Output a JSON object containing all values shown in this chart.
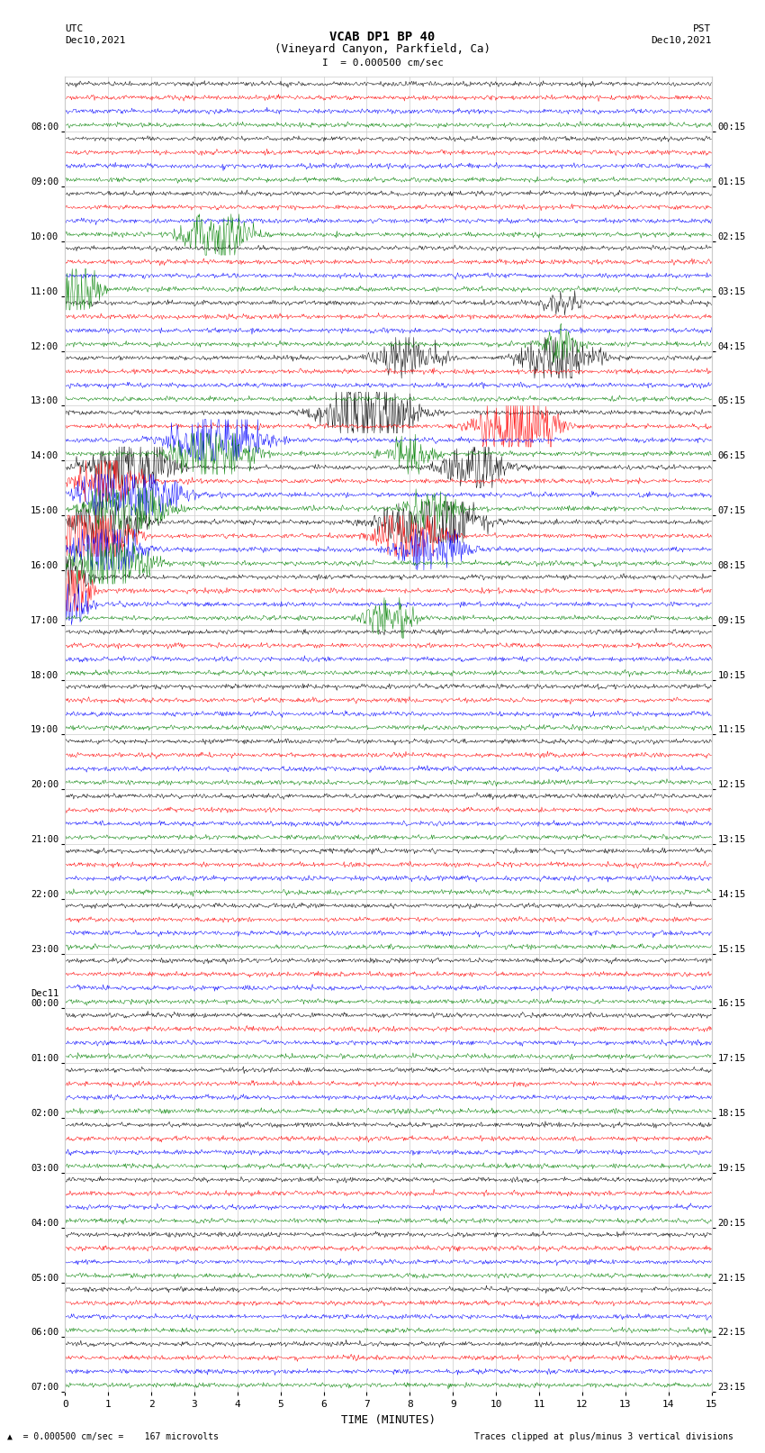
{
  "title_line1": "VCAB DP1 BP 40",
  "title_line2": "(Vineyard Canyon, Parkfield, Ca)",
  "scale_label": "I  = 0.000500 cm/sec",
  "left_label_top": "UTC",
  "left_label_date": "Dec10,2021",
  "right_label_top": "PST",
  "right_label_date": "Dec10,2021",
  "xlabel": "TIME (MINUTES)",
  "bottom_left_note": "= 0.000500 cm/sec =    167 microvolts",
  "bottom_right_note": "Traces clipped at plus/minus 3 vertical divisions",
  "num_rows": 24,
  "colors": [
    "black",
    "red",
    "blue",
    "green"
  ],
  "bg_color": "#ffffff",
  "grid_color": "#cccccc",
  "fig_width": 8.5,
  "fig_height": 16.13,
  "dpi": 100,
  "left_times_utc": [
    "08:00",
    "09:00",
    "10:00",
    "11:00",
    "12:00",
    "13:00",
    "14:00",
    "15:00",
    "16:00",
    "17:00",
    "18:00",
    "19:00",
    "20:00",
    "21:00",
    "22:00",
    "23:00",
    "Dec11\n00:00",
    "01:00",
    "02:00",
    "03:00",
    "04:00",
    "05:00",
    "06:00",
    "07:00"
  ],
  "right_times_pst": [
    "00:15",
    "01:15",
    "02:15",
    "03:15",
    "04:15",
    "05:15",
    "06:15",
    "07:15",
    "08:15",
    "09:15",
    "10:15",
    "11:15",
    "12:15",
    "13:15",
    "14:15",
    "15:15",
    "16:15",
    "17:15",
    "18:15",
    "19:15",
    "20:15",
    "21:15",
    "22:15",
    "23:15"
  ],
  "events": [
    [
      10,
      3,
      3.5,
      18,
      0.5
    ],
    [
      11,
      3,
      0.2,
      20,
      0.4
    ],
    [
      12,
      3,
      11.5,
      10,
      0.3
    ],
    [
      12,
      0,
      11.5,
      6,
      0.3
    ],
    [
      13,
      0,
      8.0,
      12,
      0.5
    ],
    [
      13,
      0,
      11.5,
      14,
      0.6
    ],
    [
      14,
      0,
      7.0,
      18,
      0.7
    ],
    [
      14,
      1,
      10.5,
      22,
      0.6
    ],
    [
      14,
      2,
      3.5,
      18,
      0.7
    ],
    [
      14,
      3,
      3.5,
      16,
      0.6
    ],
    [
      14,
      3,
      8.0,
      10,
      0.4
    ],
    [
      15,
      0,
      1.5,
      22,
      0.6
    ],
    [
      15,
      0,
      9.5,
      14,
      0.5
    ],
    [
      15,
      1,
      1.0,
      16,
      0.5
    ],
    [
      15,
      2,
      1.5,
      22,
      0.7
    ],
    [
      15,
      3,
      1.5,
      18,
      0.6
    ],
    [
      15,
      3,
      8.5,
      12,
      0.4
    ],
    [
      16,
      0,
      1.0,
      18,
      0.5
    ],
    [
      16,
      0,
      8.5,
      22,
      0.7
    ],
    [
      16,
      1,
      0.5,
      24,
      0.6
    ],
    [
      16,
      1,
      8.0,
      18,
      0.5
    ],
    [
      16,
      2,
      1.0,
      16,
      0.5
    ],
    [
      16,
      2,
      8.5,
      14,
      0.5
    ],
    [
      16,
      3,
      1.0,
      18,
      0.6
    ],
    [
      17,
      0,
      0.1,
      18,
      0.3
    ],
    [
      17,
      1,
      0.1,
      26,
      0.3
    ],
    [
      17,
      2,
      0.1,
      14,
      0.3
    ],
    [
      17,
      3,
      7.5,
      12,
      0.4
    ]
  ]
}
